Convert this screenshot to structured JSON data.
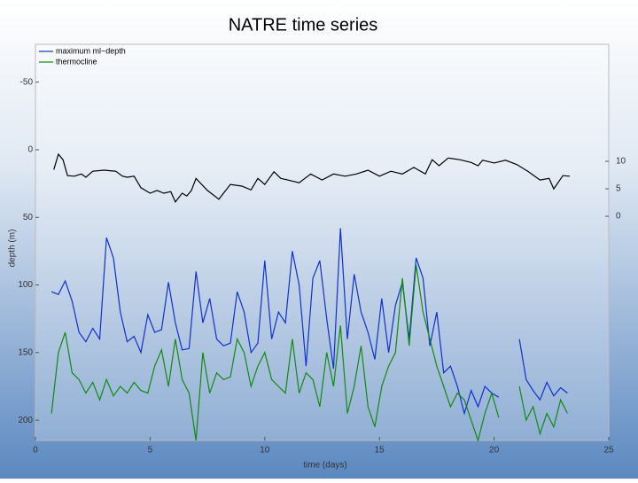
{
  "chart_data": {
    "type": "line",
    "title": "NATRE time series",
    "xlabel": "time (days)",
    "ylabel": "depth (m)",
    "xlim": [
      0,
      25
    ],
    "xticks": [
      0,
      5,
      10,
      15,
      20,
      25
    ],
    "ylim": [
      215,
      -78
    ],
    "yticks": [
      -50,
      0,
      50,
      100,
      150,
      200
    ],
    "y2lim": [
      -40.8,
      31.3
    ],
    "y2ticks": [
      0,
      5,
      10
    ],
    "legend": "upper left",
    "x": [
      0.7,
      1.0,
      1.3,
      1.6,
      1.9,
      2.2,
      2.5,
      2.8,
      3.1,
      3.4,
      3.7,
      4.0,
      4.3,
      4.6,
      4.9,
      5.2,
      5.5,
      5.8,
      6.1,
      6.4,
      6.7,
      7.0,
      7.3,
      7.6,
      7.9,
      8.2,
      8.5,
      8.8,
      9.1,
      9.4,
      9.7,
      10.0,
      10.3,
      10.6,
      10.9,
      11.2,
      11.5,
      11.8,
      12.1,
      12.4,
      12.7,
      13.0,
      13.3,
      13.6,
      13.9,
      14.2,
      14.5,
      14.8,
      15.1,
      15.4,
      15.7,
      16.0,
      16.3,
      16.6,
      16.9,
      17.2,
      17.5,
      17.8,
      18.1,
      18.4,
      18.7,
      19.0,
      19.3,
      19.6,
      19.9,
      20.2,
      20.6,
      21.1,
      21.4,
      21.7,
      22.0,
      22.3,
      22.6,
      22.9,
      23.2
    ],
    "series": [
      {
        "name": "maximum ml−depth",
        "color": "#1030d0",
        "values": [
          105,
          107,
          97,
          112,
          135,
          142,
          132,
          140,
          65,
          80,
          120,
          142,
          138,
          150,
          122,
          135,
          133,
          98,
          128,
          148,
          147,
          90,
          128,
          110,
          140,
          145,
          143,
          105,
          120,
          150,
          143,
          82,
          140,
          120,
          128,
          75,
          100,
          160,
          95,
          82,
          125,
          162,
          58,
          140,
          92,
          120,
          135,
          155,
          110,
          150,
          115,
          98,
          140,
          80,
          95,
          145,
          120,
          165,
          160,
          175,
          195,
          178,
          190,
          175,
          180,
          183,
          null,
          140,
          170,
          178,
          185,
          172,
          182,
          176,
          180
        ]
      },
      {
        "name": "thermocline",
        "color": "#108a10",
        "values": [
          195,
          150,
          135,
          165,
          170,
          180,
          172,
          185,
          170,
          182,
          175,
          180,
          172,
          178,
          180,
          160,
          148,
          175,
          140,
          170,
          180,
          215,
          150,
          180,
          165,
          170,
          168,
          140,
          150,
          175,
          160,
          150,
          170,
          175,
          180,
          140,
          180,
          165,
          170,
          190,
          150,
          175,
          130,
          195,
          175,
          145,
          190,
          205,
          175,
          160,
          150,
          95,
          145,
          85,
          120,
          140,
          160,
          175,
          190,
          180,
          185,
          200,
          215,
          195,
          180,
          198,
          null,
          175,
          200,
          190,
          210,
          195,
          205,
          185,
          195
        ]
      },
      {
        "color": "#000000",
        "axis": "y2",
        "x": [
          0.8,
          1.0,
          1.2,
          1.4,
          1.7,
          2.0,
          2.2,
          2.5,
          3.0,
          3.5,
          3.8,
          4.0,
          4.3,
          4.6,
          5.0,
          5.3,
          5.6,
          5.9,
          6.1,
          6.4,
          6.6,
          6.8,
          7.0,
          7.5,
          8.0,
          8.5,
          9.0,
          9.4,
          9.7,
          10.0,
          10.4,
          10.7,
          11.0,
          11.5,
          12.0,
          12.5,
          13.0,
          13.5,
          14.0,
          14.5,
          15.0,
          15.5,
          16.0,
          16.5,
          17.0,
          17.3,
          17.6,
          18.0,
          18.5,
          19.0,
          19.3,
          19.5,
          20.0,
          20.5,
          21.0,
          21.5,
          22.0,
          22.4,
          22.6,
          23.0,
          23.3
        ],
        "values": [
          8.5,
          11.3,
          10.3,
          7.4,
          7.3,
          7.7,
          7.1,
          8.2,
          8.4,
          8.2,
          7.3,
          7.1,
          7.3,
          5.2,
          4.2,
          4.7,
          4.2,
          4.5,
          2.6,
          4.2,
          3.7,
          4.7,
          6.9,
          4.7,
          3.1,
          5.8,
          5.5,
          4.8,
          6.9,
          5.8,
          8.1,
          6.9,
          6.6,
          6.1,
          7.7,
          6.6,
          7.7,
          7.3,
          7.7,
          8.4,
          7.3,
          8.2,
          7.7,
          8.9,
          7.7,
          10.3,
          9.2,
          10.6,
          10.3,
          9.8,
          9.2,
          10.2,
          9.7,
          10.2,
          9.4,
          8.1,
          6.6,
          6.9,
          5.0,
          7.4,
          7.3
        ]
      }
    ]
  }
}
